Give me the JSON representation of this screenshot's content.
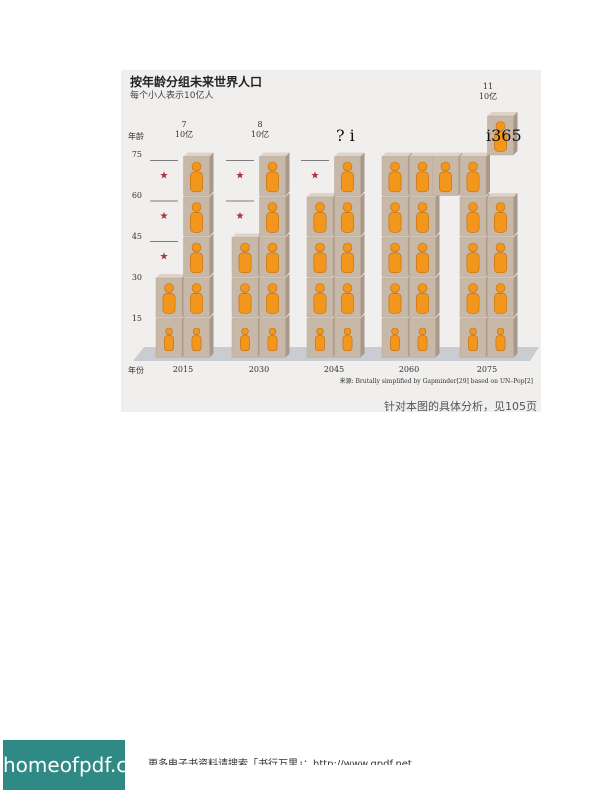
{
  "chart_data": {
    "type": "bar",
    "title": "按年龄分组未来世界人口",
    "subtitle": "每个小人表示10亿人",
    "ylabel": "年龄",
    "xlabel": "年份",
    "y_ticks": [
      "15",
      "30",
      "45",
      "60",
      "75"
    ],
    "categories": [
      "2015",
      "2030",
      "2045",
      "2060",
      "2075"
    ],
    "totals": [
      {
        "value": "7",
        "unit": "10亿"
      },
      {
        "value": "8",
        "unit": "10亿"
      },
      {
        "value": "",
        "unit": ""
      },
      {
        "value": "",
        "unit": ""
      },
      {
        "value": "11",
        "unit": "10亿"
      }
    ],
    "columns": [
      {
        "year": "2015",
        "counts": [
          2,
          2,
          1,
          1,
          1
        ],
        "stars": [
          0,
          0,
          1,
          1,
          1
        ]
      },
      {
        "year": "2030",
        "counts": [
          2,
          2,
          2,
          1,
          1
        ],
        "stars": [
          0,
          0,
          0,
          1,
          1
        ]
      },
      {
        "year": "2045",
        "counts": [
          2,
          2,
          2,
          2,
          1
        ],
        "stars": [
          0,
          0,
          0,
          0,
          1
        ]
      },
      {
        "year": "2060",
        "counts": [
          2,
          2,
          2,
          2,
          2
        ],
        "stars": [
          0,
          0,
          0,
          0,
          0
        ]
      },
      {
        "year": "2075",
        "counts": [
          2,
          2,
          2,
          2,
          3
        ],
        "stars": [
          0,
          0,
          0,
          0,
          0
        ]
      }
    ],
    "source": "来源: Brutally simplified by Gapminder[29] based on UN–Pop[2]",
    "colors": {
      "person": "#f2971b",
      "person_dark": "#c56a06",
      "box": "#c7b8a8",
      "box_side": "#a8988a",
      "star": "#a8333a",
      "floor": "#c9ccd0"
    }
  },
  "caption": "针对本图的具体分析，见105页",
  "overlay_noise": "?   i",
  "overlay_noise_2": "i365",
  "footer": {
    "logo_text": "homeofpdf.com",
    "text": "更多电子书资料请搜索「书行万里」：http://www.gpdf.net"
  }
}
